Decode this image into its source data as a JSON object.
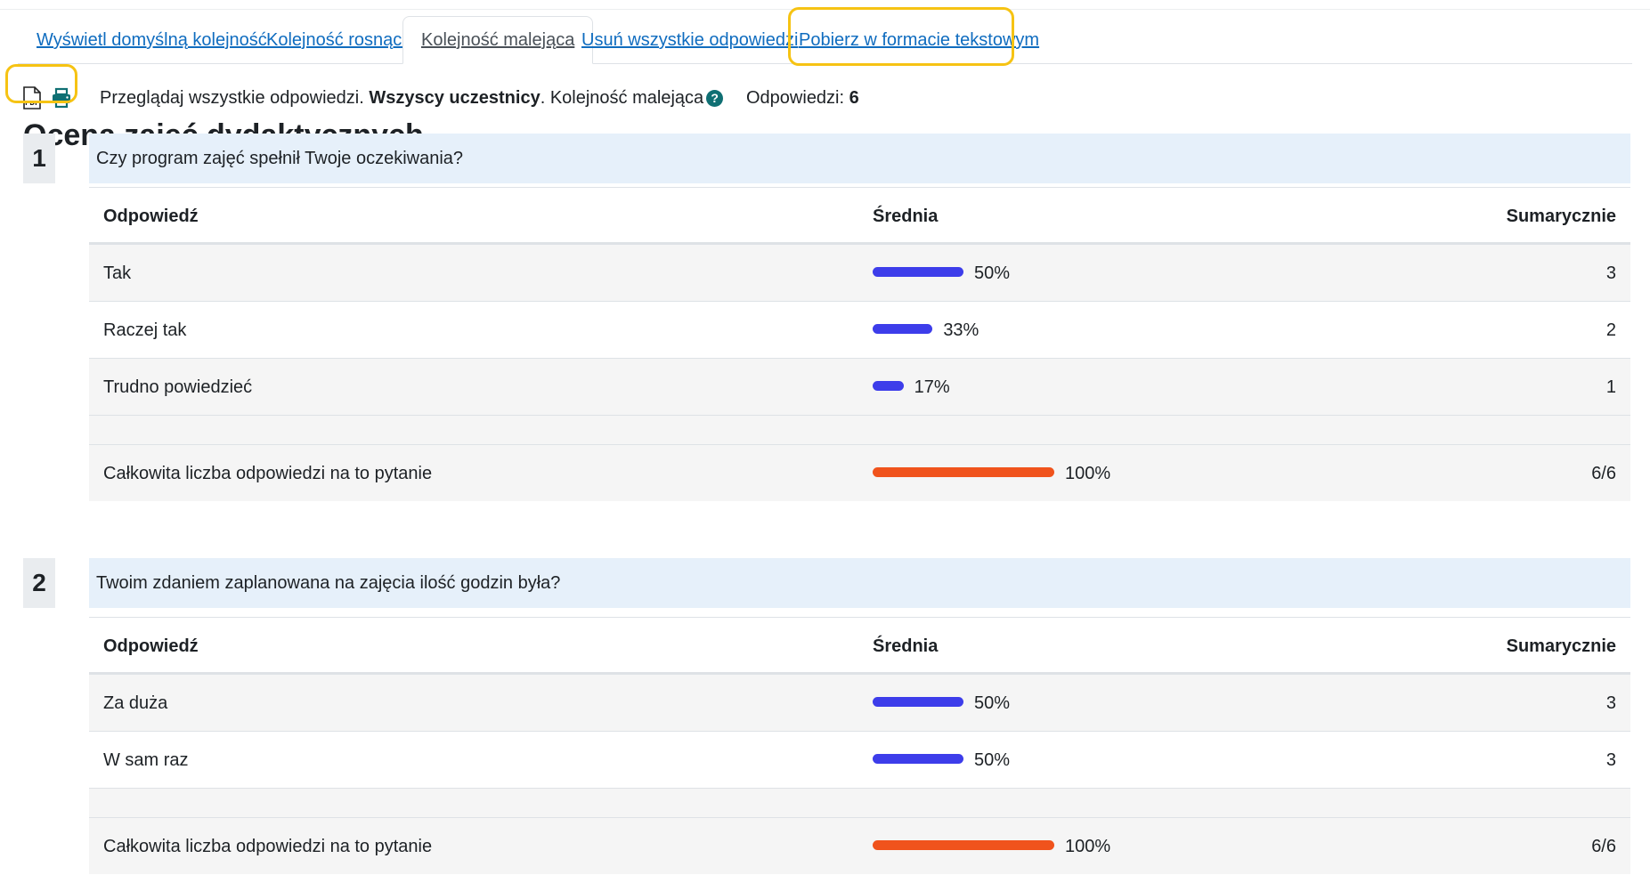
{
  "tabs": [
    {
      "label": "Wyświetl domyślną kolejność",
      "active": false
    },
    {
      "label": "Kolejność rosnąca",
      "active": false
    },
    {
      "label": "Kolejność malejąca",
      "active": true
    },
    {
      "label": "Usuń wszystkie odpowiedzi",
      "active": false
    },
    {
      "label": "Pobierz w formacie tekstowym",
      "active": false
    }
  ],
  "toolbar": {
    "icons": [
      "pdf-icon",
      "print-icon"
    ],
    "pdf_label": "PDF",
    "browse_text": "Przeglądaj wszystkie odpowiedzi.",
    "participants": "Wszyscy uczestnicy",
    "order_text": ". Kolejność malejąca",
    "help_glyph": "?",
    "count_label": "Odpowiedzi:",
    "count_value": "6"
  },
  "colors": {
    "link": "#0f6cbf",
    "highlight": "#f6c313",
    "bar_answer": "#3d3dea",
    "bar_total": "#f0531c",
    "question_bg": "#e6f0fa"
  },
  "page_title": "Ocena zajęć dydaktycznych",
  "table_headers": {
    "answer": "Odpowiedź",
    "average": "Średnia",
    "total": "Sumarycznie"
  },
  "questions": [
    {
      "number": "1",
      "text": "Czy program zajęć spełnił Twoje oczekiwania?",
      "rows": [
        {
          "answer": "Tak",
          "percent": 50,
          "percent_label": "50%",
          "count": "3"
        },
        {
          "answer": "Raczej tak",
          "percent": 33,
          "percent_label": "33%",
          "count": "2"
        },
        {
          "answer": "Trudno powiedzieć",
          "percent": 17,
          "percent_label": "17%",
          "count": "1"
        }
      ],
      "total": {
        "label": "Całkowita liczba odpowiedzi na to pytanie",
        "percent": 100,
        "percent_label": "100%",
        "count": "6/6"
      }
    },
    {
      "number": "2",
      "text": "Twoim zdaniem zaplanowana na zajęcia ilość godzin była?",
      "rows": [
        {
          "answer": "Za duża",
          "percent": 50,
          "percent_label": "50%",
          "count": "3"
        },
        {
          "answer": "W sam raz",
          "percent": 50,
          "percent_label": "50%",
          "count": "3"
        }
      ],
      "total": {
        "label": "Całkowita liczba odpowiedzi na to pytanie",
        "percent": 100,
        "percent_label": "100%",
        "count": "6/6"
      }
    }
  ]
}
